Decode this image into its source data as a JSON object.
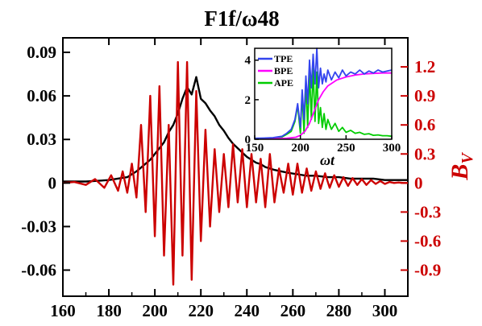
{
  "chart_data": {
    "type": "line",
    "title": "F1f/ω48",
    "xlim": [
      160,
      310
    ],
    "x_ticks": [
      "160",
      "180",
      "200",
      "220",
      "240",
      "260",
      "280",
      "300"
    ],
    "left_axis": {
      "ylim": [
        -0.078,
        0.1
      ],
      "ticks": [
        "0.09",
        "0.06",
        "0.03",
        "0",
        "-0.03",
        "-0.06"
      ],
      "tick_values": [
        0.09,
        0.06,
        0.03,
        0,
        -0.03,
        -0.06
      ],
      "color": "#000000"
    },
    "right_axis": {
      "label_main": "B",
      "label_sub": "V",
      "ylim": [
        -1.17,
        1.5
      ],
      "ticks": [
        "1.2",
        "0.9",
        "0.6",
        "0.3",
        "0",
        "-0.3",
        "-0.6",
        "-0.9"
      ],
      "tick_values": [
        1.2,
        0.9,
        0.6,
        0.3,
        0,
        -0.3,
        -0.6,
        -0.9
      ],
      "color": "#cc0000"
    },
    "series": [
      {
        "axis": "left",
        "color": "#000000",
        "x": [
          160,
          170,
          180,
          188,
          192,
          195,
          198,
          200,
          202,
          204,
          206,
          208,
          210,
          212,
          214,
          216,
          218,
          220,
          222,
          224,
          226,
          228,
          230,
          232,
          234,
          236,
          238,
          240,
          242,
          244,
          246,
          248,
          250,
          252,
          255,
          258,
          262,
          266,
          270,
          275,
          280,
          285,
          290,
          295,
          300,
          305,
          310
        ],
        "y": [
          0.001,
          0.001,
          0.002,
          0.004,
          0.008,
          0.012,
          0.016,
          0.02,
          0.024,
          0.028,
          0.035,
          0.04,
          0.048,
          0.058,
          0.066,
          0.061,
          0.073,
          0.058,
          0.055,
          0.05,
          0.046,
          0.04,
          0.036,
          0.031,
          0.027,
          0.024,
          0.021,
          0.018,
          0.016,
          0.014,
          0.013,
          0.011,
          0.01,
          0.009,
          0.008,
          0.007,
          0.006,
          0.005,
          0.005,
          0.004,
          0.004,
          0.003,
          0.003,
          0.003,
          0.002,
          0.002,
          0.002
        ]
      },
      {
        "axis": "right",
        "color": "#cc0000",
        "x": [
          160,
          165,
          170,
          174,
          178,
          181,
          184,
          186,
          188,
          190,
          192,
          194,
          196,
          198,
          200,
          202,
          204,
          206,
          208,
          210,
          212,
          214,
          216,
          218,
          220,
          222,
          224,
          226,
          228,
          230,
          232,
          234,
          236,
          238,
          240,
          242,
          244,
          246,
          248,
          250,
          252,
          254,
          256,
          258,
          260,
          262,
          264,
          266,
          268,
          270,
          272,
          274,
          276,
          278,
          280,
          282,
          284,
          286,
          288,
          290,
          292,
          294,
          296,
          298,
          300,
          302,
          304,
          306,
          308,
          310
        ],
        "y": [
          0,
          0.01,
          -0.02,
          0.04,
          -0.05,
          0.08,
          -0.08,
          0.12,
          -0.1,
          0.2,
          -0.15,
          0.6,
          -0.3,
          0.9,
          -0.55,
          1.0,
          -0.75,
          0.6,
          -1.05,
          1.25,
          -0.75,
          1.25,
          -1.0,
          0.95,
          -0.6,
          0.55,
          -0.45,
          0.35,
          -0.3,
          0.3,
          -0.25,
          0.4,
          -0.2,
          0.35,
          -0.25,
          0.3,
          -0.2,
          0.25,
          -0.25,
          0.3,
          -0.2,
          0.15,
          -0.1,
          0.2,
          -0.12,
          0.2,
          -0.1,
          0.15,
          -0.08,
          0.12,
          -0.06,
          0.1,
          -0.05,
          0.08,
          -0.04,
          0.06,
          -0.03,
          0.05,
          -0.02,
          0.04,
          -0.02,
          0.03,
          -0.01,
          0.02,
          -0.01,
          0.01,
          0,
          0.005,
          0,
          0
        ]
      }
    ],
    "inset": {
      "xlim": [
        150,
        300
      ],
      "ylim": [
        0,
        4.6
      ],
      "x_ticks": [
        "150",
        "200",
        "250",
        "300"
      ],
      "x_tick_values": [
        150,
        200,
        250,
        300
      ],
      "y_ticks": [
        "0",
        "2",
        "4"
      ],
      "y_tick_values": [
        0,
        2,
        4
      ],
      "xlabel": "ωt",
      "legend_placement": "top-left",
      "series": [
        {
          "name": "TPE",
          "color": "#3344ee",
          "x": [
            150,
            160,
            170,
            180,
            185,
            190,
            194,
            197,
            200,
            202,
            204,
            206,
            208,
            210,
            212,
            214,
            216,
            218,
            220,
            222,
            224,
            226,
            228,
            230,
            234,
            238,
            242,
            246,
            250,
            255,
            260,
            265,
            270,
            275,
            280,
            285,
            290,
            295,
            300
          ],
          "y": [
            0.05,
            0.06,
            0.08,
            0.15,
            0.3,
            0.5,
            1.0,
            1.8,
            0.6,
            2.5,
            1.0,
            3.2,
            1.8,
            4.0,
            2.6,
            4.3,
            2.8,
            4.6,
            2.6,
            3.6,
            2.8,
            3.3,
            2.9,
            3.5,
            3.0,
            3.4,
            3.1,
            3.5,
            3.2,
            3.4,
            3.3,
            3.5,
            3.3,
            3.45,
            3.35,
            3.5,
            3.4,
            3.45,
            3.5
          ]
        },
        {
          "name": "BPE",
          "color": "#ff00ff",
          "x": [
            150,
            170,
            185,
            195,
            200,
            205,
            210,
            215,
            220,
            225,
            230,
            240,
            250,
            260,
            270,
            280,
            290,
            300
          ],
          "y": [
            0.02,
            0.03,
            0.05,
            0.1,
            0.2,
            0.4,
            0.8,
            1.4,
            2.0,
            2.4,
            2.7,
            3.0,
            3.15,
            3.25,
            3.3,
            3.33,
            3.35,
            3.35
          ]
        },
        {
          "name": "APE",
          "color": "#00cc00",
          "x": [
            150,
            160,
            170,
            180,
            185,
            190,
            194,
            197,
            200,
            202,
            204,
            206,
            208,
            210,
            212,
            214,
            216,
            218,
            220,
            222,
            224,
            226,
            228,
            230,
            234,
            238,
            242,
            246,
            250,
            255,
            260,
            265,
            270,
            275,
            280,
            285,
            290,
            295,
            300
          ],
          "y": [
            0.03,
            0.04,
            0.05,
            0.12,
            0.25,
            0.4,
            0.9,
            1.7,
            0.3,
            2.3,
            0.3,
            2.9,
            0.6,
            3.4,
            1.0,
            3.6,
            0.9,
            3.4,
            0.8,
            1.6,
            0.6,
            1.3,
            0.5,
            1.0,
            0.5,
            0.8,
            0.4,
            0.6,
            0.35,
            0.45,
            0.3,
            0.35,
            0.25,
            0.28,
            0.2,
            0.22,
            0.18,
            0.18,
            0.15
          ]
        }
      ]
    }
  }
}
